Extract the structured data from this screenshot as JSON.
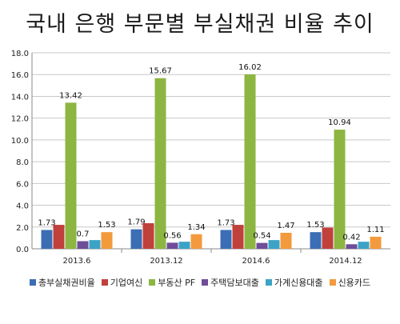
{
  "chart_data": {
    "type": "bar",
    "title": "국내 은행 부문별 부실채권 비율 추이",
    "categories": [
      "2013.6",
      "2013.12",
      "2014.6",
      "2014.12"
    ],
    "ylim": [
      0,
      18
    ],
    "yticks": [
      "0.0",
      "2.0",
      "4.0",
      "6.0",
      "8.0",
      "10.0",
      "12.0",
      "14.0",
      "16.0",
      "18.0"
    ],
    "grid": true,
    "legend_position": "bottom",
    "series": [
      {
        "name": "총부실채권비율",
        "color": "#3b6eb4",
        "values": [
          1.73,
          1.79,
          1.73,
          1.53
        ],
        "labels": [
          "1.73",
          "1.79",
          "1.73",
          "1.53"
        ]
      },
      {
        "name": "기업여신",
        "color": "#c0403c",
        "values": [
          2.2,
          2.35,
          2.2,
          1.95
        ],
        "labels": [
          "",
          "",
          "",
          ""
        ]
      },
      {
        "name": "부동산 PF",
        "color": "#8db541",
        "values": [
          13.42,
          15.67,
          16.02,
          10.94
        ],
        "labels": [
          "13.42",
          "15.67",
          "16.02",
          "10.94"
        ]
      },
      {
        "name": "주택담보대출",
        "color": "#6e4d99",
        "values": [
          0.7,
          0.56,
          0.54,
          0.42
        ],
        "labels": [
          "0.7",
          "0.56",
          "0.54",
          "0.42"
        ]
      },
      {
        "name": "가계신용대출",
        "color": "#3da3c6",
        "values": [
          0.8,
          0.65,
          0.8,
          0.65
        ],
        "labels": [
          "",
          "",
          "",
          ""
        ]
      },
      {
        "name": "신용카드",
        "color": "#f39a3d",
        "values": [
          1.53,
          1.34,
          1.47,
          1.11
        ],
        "labels": [
          "1.53",
          "1.34",
          "1.47",
          "1.11"
        ]
      }
    ]
  }
}
